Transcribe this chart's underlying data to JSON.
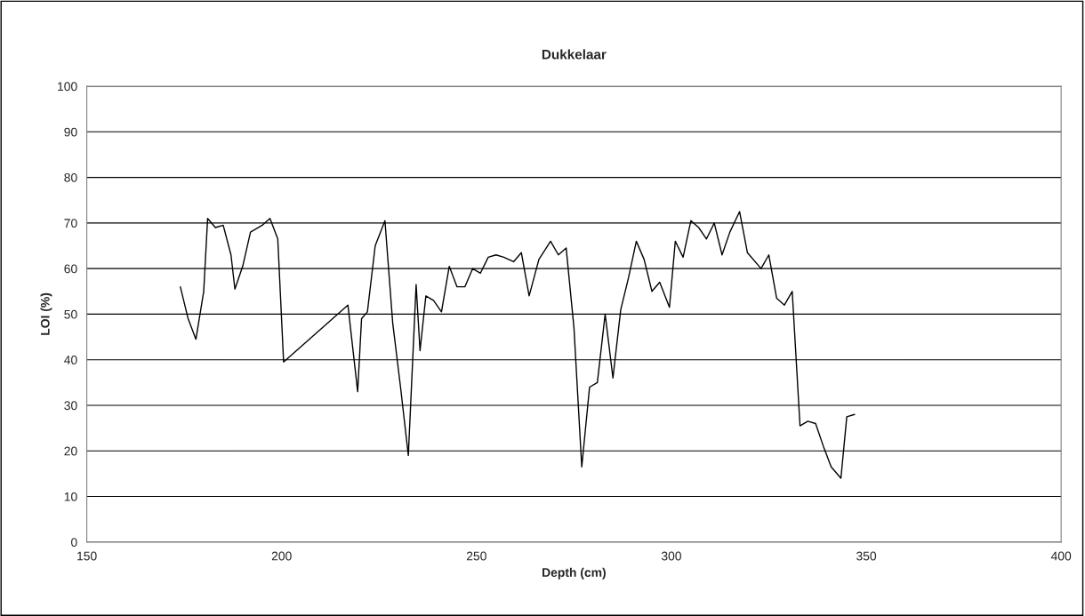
{
  "chart_data": {
    "type": "line",
    "title": "Dukkelaar",
    "xlabel": "Depth (cm)",
    "ylabel": "LOI (%)",
    "xlim": [
      150,
      400
    ],
    "xticks": [
      150,
      200,
      250,
      300,
      350,
      400
    ],
    "ylim": [
      0,
      100
    ],
    "yticks": [
      0,
      10,
      20,
      30,
      40,
      50,
      60,
      70,
      80,
      90,
      100
    ],
    "grid": "y",
    "legend": false,
    "series": [
      {
        "color": "#000000",
        "x": [
          174,
          176,
          178,
          180,
          181,
          183,
          185,
          187,
          188,
          190,
          192,
          195,
          197,
          199,
          200.5,
          217,
          219.5,
          220.5,
          222,
          224,
          226.5,
          228.5,
          230.5,
          232.5,
          234.5,
          235.5,
          237,
          239,
          241,
          243,
          245,
          247,
          249,
          251,
          253,
          255,
          257,
          259.5,
          261.5,
          263.5,
          266,
          269,
          271,
          273,
          275,
          277,
          279,
          281,
          283,
          285,
          287,
          289,
          291,
          293,
          295,
          297,
          299.5,
          301,
          303,
          305,
          307,
          309,
          311,
          313,
          315,
          317.5,
          319.5,
          323,
          325,
          327,
          329,
          331,
          333,
          335,
          337,
          339,
          341,
          343.5,
          345,
          347
        ],
        "values": [
          56,
          49,
          44.5,
          55,
          71,
          69,
          69.5,
          63,
          55.5,
          60.5,
          68,
          69.5,
          71,
          66.5,
          39.5,
          52,
          33,
          49,
          50.5,
          65,
          70.5,
          48,
          34,
          19,
          56.5,
          42,
          54,
          53,
          50.5,
          60.5,
          56,
          56,
          60,
          59,
          62.5,
          63,
          62.5,
          61.5,
          63.5,
          54,
          62,
          66,
          63,
          64.5,
          47,
          16.5,
          34,
          35,
          50,
          36,
          51,
          58,
          66,
          62,
          55,
          57,
          51.5,
          66,
          62.5,
          70.5,
          69,
          66.5,
          70,
          63,
          68,
          72.5,
          63.5,
          60,
          63,
          53.5,
          52,
          55,
          25.5,
          26.5,
          26,
          21,
          16.5,
          14,
          27.5,
          28
        ]
      }
    ]
  }
}
